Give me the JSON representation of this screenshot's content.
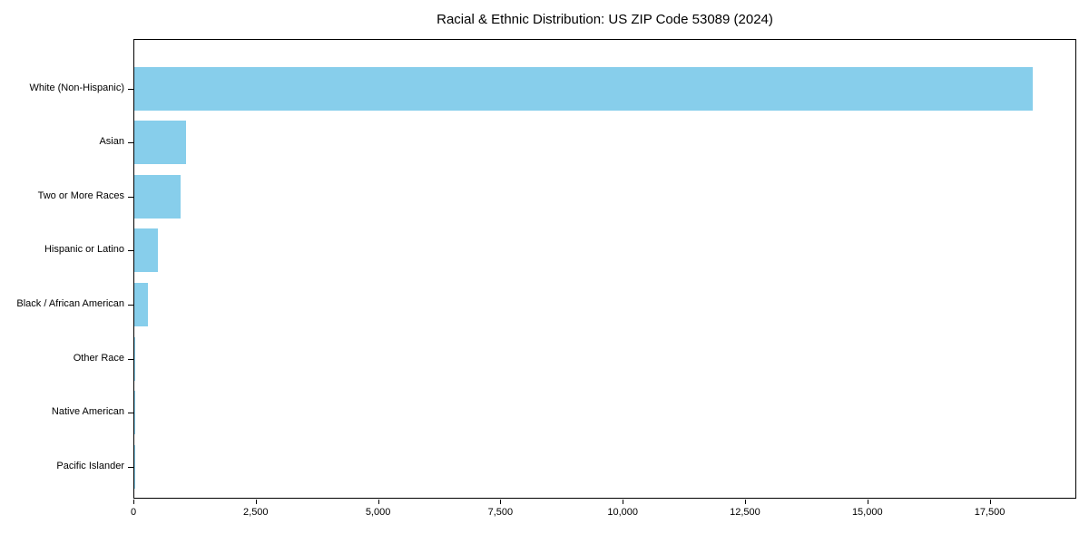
{
  "chart_data": {
    "type": "bar",
    "orientation": "horizontal",
    "title": "Racial & Ethnic Distribution: US ZIP Code 53089 (2024)",
    "categories": [
      "White (Non-Hispanic)",
      "Asian",
      "Two or More Races",
      "Hispanic or Latino",
      "Black / African American",
      "Other Race",
      "Native American",
      "Pacific Islander"
    ],
    "values": [
      18360,
      1055,
      945,
      490,
      285,
      22,
      15,
      5
    ],
    "xlabel": "",
    "ylabel": "",
    "xlim": [
      0,
      19270
    ],
    "x_ticks": [
      {
        "value": 0,
        "label": "0"
      },
      {
        "value": 2500,
        "label": "2,500"
      },
      {
        "value": 5000,
        "label": "5,000"
      },
      {
        "value": 7500,
        "label": "7,500"
      },
      {
        "value": 10000,
        "label": "10,000"
      },
      {
        "value": 12500,
        "label": "12,500"
      },
      {
        "value": 15000,
        "label": "15,000"
      },
      {
        "value": 17500,
        "label": "17,500"
      }
    ],
    "grid": false,
    "legend": null,
    "bar_color": "#87CEEB",
    "frame_color": "#000000",
    "text_color": "#000000",
    "background_color": "#ffffff"
  }
}
